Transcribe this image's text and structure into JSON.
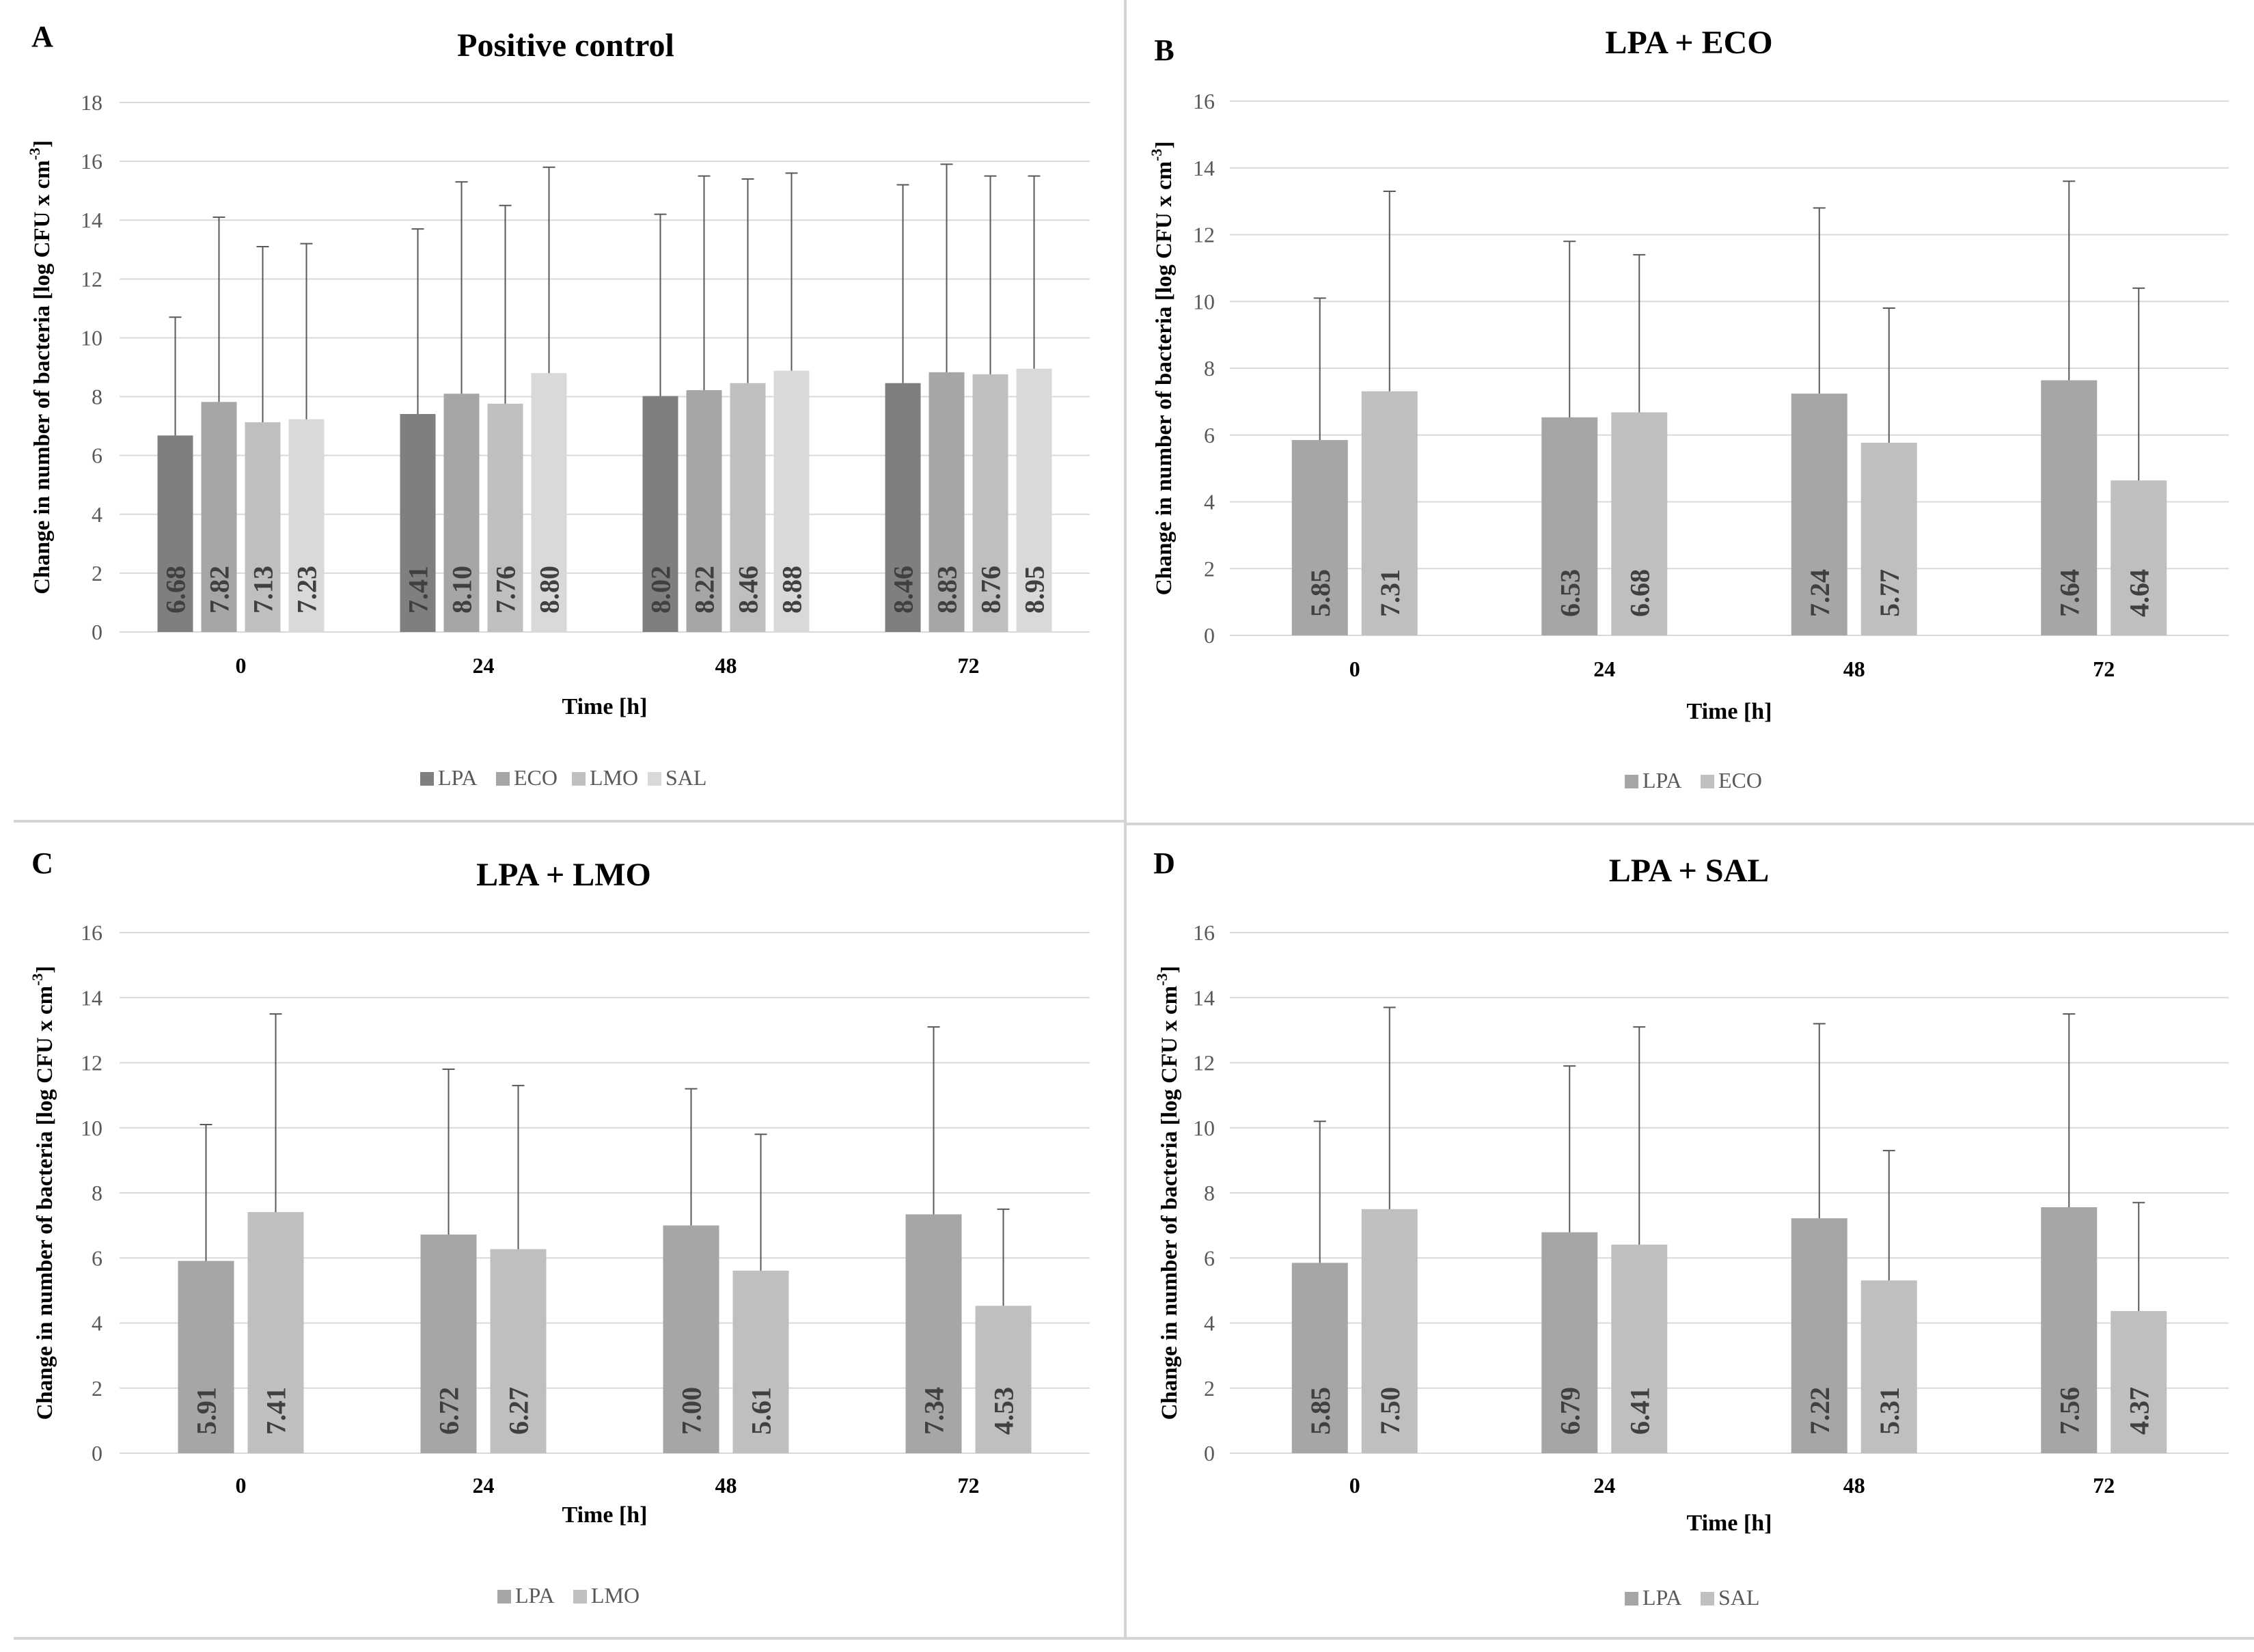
{
  "colors": {
    "LPA": "#7f7f7f",
    "ECO": "#a6a6a6",
    "LMO": "#bfbfbf",
    "SAL": "#d9d9d9",
    "gridline": "#d9d9d9",
    "axis_text": "#595959",
    "title_text": "#000000"
  },
  "chart_data": [
    {
      "panel_letter": "A",
      "type": "bar",
      "title": "Positive control",
      "ylabel_main": "Change in number  of bacteria  [log CFU  x cm",
      "ylabel_sup": "-3",
      "ylabel_end": "]",
      "xlabel": "Time [h]",
      "ylim": [
        0,
        18
      ],
      "yticks": [
        0,
        2,
        4,
        6,
        8,
        10,
        12,
        14,
        16,
        18
      ],
      "categories": [
        "0",
        "24",
        "48",
        "72"
      ],
      "legend_position": "bottom-center",
      "series": [
        {
          "name": "LPA",
          "color_key": "LPA",
          "values": [
            6.68,
            7.41,
            8.02,
            8.46
          ],
          "labels": [
            "6.68",
            "7.41",
            "8.02",
            "8.46"
          ],
          "error_top": [
            10.7,
            13.7,
            14.2,
            15.2
          ]
        },
        {
          "name": "ECO",
          "color_key": "ECO",
          "values": [
            7.82,
            8.1,
            8.22,
            8.83
          ],
          "labels": [
            "7.82",
            "8.10",
            "8.22",
            "8.83"
          ],
          "error_top": [
            14.1,
            15.3,
            15.5,
            15.9
          ]
        },
        {
          "name": "LMO",
          "color_key": "LMO",
          "values": [
            7.13,
            7.76,
            8.46,
            8.76
          ],
          "labels": [
            "7.13",
            "7.76",
            "8.46",
            "8.76"
          ],
          "error_top": [
            13.1,
            14.5,
            15.4,
            15.5
          ]
        },
        {
          "name": "SAL",
          "color_key": "SAL",
          "values": [
            7.23,
            8.8,
            8.88,
            8.95
          ],
          "labels": [
            "7.23",
            "8.80",
            "8.88",
            "8.95"
          ],
          "error_top": [
            13.2,
            15.8,
            15.6,
            15.5
          ]
        }
      ]
    },
    {
      "panel_letter": "B",
      "type": "bar",
      "title": "LPA + ECO",
      "ylabel_main": "Change  in  number  of  bacteria  [log CFU  x cm",
      "ylabel_sup": "-3",
      "ylabel_end": "]",
      "xlabel": "Time [h]",
      "ylim": [
        0,
        16
      ],
      "yticks": [
        0,
        2,
        4,
        6,
        8,
        10,
        12,
        14,
        16
      ],
      "categories": [
        "0",
        "24",
        "48",
        "72"
      ],
      "legend_position": "bottom-center",
      "series": [
        {
          "name": "LPA",
          "color_key": "ECO",
          "values": [
            5.85,
            6.53,
            7.24,
            7.64
          ],
          "labels": [
            "5.85",
            "6.53",
            "7.24",
            "7.64"
          ],
          "error_top": [
            10.1,
            11.8,
            12.8,
            13.6
          ]
        },
        {
          "name": "ECO",
          "color_key": "LMO",
          "values": [
            7.31,
            6.68,
            5.77,
            4.64
          ],
          "labels": [
            "7.31",
            "6.68",
            "5.77",
            "4.64"
          ],
          "error_top": [
            13.3,
            11.4,
            9.8,
            10.4
          ]
        }
      ]
    },
    {
      "panel_letter": "C",
      "type": "bar",
      "title": "LPA + LMO",
      "ylabel_main": "Change  in number   of bacteria  [log CFU  x cm",
      "ylabel_sup": "-3",
      "ylabel_end": "]",
      "xlabel": "Time [h]",
      "ylim": [
        0,
        16
      ],
      "yticks": [
        0,
        2,
        4,
        6,
        8,
        10,
        12,
        14,
        16
      ],
      "categories": [
        "0",
        "24",
        "48",
        "72"
      ],
      "legend_position": "bottom-center",
      "series": [
        {
          "name": "LPA",
          "color_key": "ECO",
          "values": [
            5.91,
            6.72,
            7.0,
            7.34
          ],
          "labels": [
            "5.91",
            "6.72",
            "7.00",
            "7.34"
          ],
          "error_top": [
            10.1,
            11.8,
            11.2,
            13.1
          ]
        },
        {
          "name": "LMO",
          "color_key": "LMO",
          "values": [
            7.41,
            6.27,
            5.61,
            4.53
          ],
          "labels": [
            "7.41",
            "6.27",
            "5.61",
            "4.53"
          ],
          "error_top": [
            13.5,
            11.3,
            9.8,
            7.5
          ]
        }
      ]
    },
    {
      "panel_letter": "D",
      "type": "bar",
      "title": "LPA + SAL",
      "ylabel_main": "Change  in  number  of  bacteria  [log CFU  x cm",
      "ylabel_sup": "-3",
      "ylabel_end": "]",
      "xlabel": "Time [h]",
      "ylim": [
        0,
        16
      ],
      "yticks": [
        0,
        2,
        4,
        6,
        8,
        10,
        12,
        14,
        16
      ],
      "categories": [
        "0",
        "24",
        "48",
        "72"
      ],
      "legend_position": "bottom-center",
      "series": [
        {
          "name": "LPA",
          "color_key": "ECO",
          "values": [
            5.85,
            6.79,
            7.22,
            7.56
          ],
          "labels": [
            "5.85",
            "6.79",
            "7.22",
            "7.56"
          ],
          "error_top": [
            10.2,
            11.9,
            13.2,
            13.5
          ]
        },
        {
          "name": "SAL",
          "color_key": "LMO",
          "values": [
            7.5,
            6.41,
            5.31,
            4.37
          ],
          "labels": [
            "7.50",
            "6.41",
            "5.31",
            "4.37"
          ],
          "error_top": [
            13.7,
            13.1,
            9.3,
            7.7
          ]
        }
      ]
    }
  ]
}
